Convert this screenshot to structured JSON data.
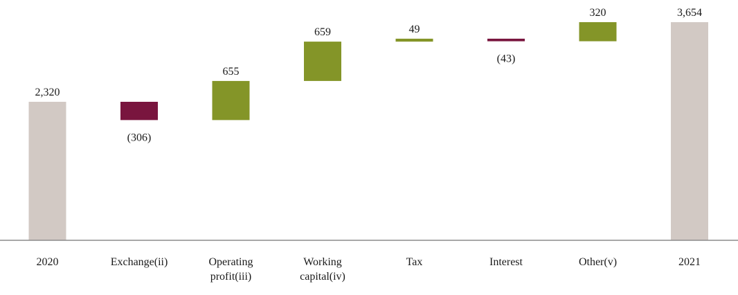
{
  "chart_data": {
    "type": "bar",
    "subtype": "waterfall",
    "title": "",
    "xlabel": "",
    "ylabel": "",
    "ylim": [
      0,
      3700
    ],
    "grid": false,
    "legend": "none",
    "categories": [
      [
        "2020"
      ],
      [
        "Exchange(ii)"
      ],
      [
        "Operating",
        "profit(iii)"
      ],
      [
        "Working",
        "capital(iv)"
      ],
      [
        "Tax"
      ],
      [
        "Interest"
      ],
      [
        "Other(v)"
      ],
      [
        "2021"
      ]
    ],
    "steps": [
      {
        "kind": "total",
        "value": 2320,
        "label": "2,320"
      },
      {
        "kind": "decrease",
        "value": -306,
        "label": "(306)"
      },
      {
        "kind": "increase",
        "value": 655,
        "label": "655"
      },
      {
        "kind": "increase",
        "value": 659,
        "label": "659"
      },
      {
        "kind": "increase",
        "value": 49,
        "label": "49"
      },
      {
        "kind": "decrease",
        "value": -43,
        "label": "(43)"
      },
      {
        "kind": "increase",
        "value": 320,
        "label": "320"
      },
      {
        "kind": "total",
        "value": 3654,
        "label": "3,654"
      }
    ],
    "colors": {
      "total": "#d2c9c4",
      "increase": "#849528",
      "decrease": "#79153e",
      "axis": "#8c8c8c"
    }
  }
}
